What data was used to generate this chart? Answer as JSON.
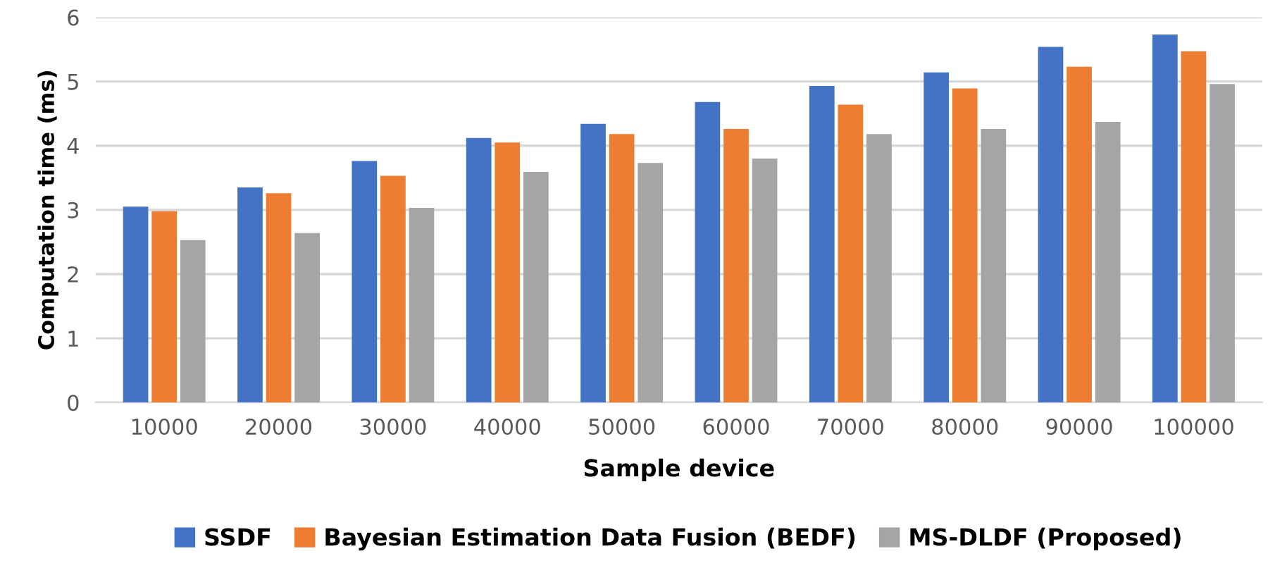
{
  "chart_data": {
    "type": "bar",
    "xlabel": "Sample device",
    "ylabel": "Computation time (ms)",
    "categories": [
      "10000",
      "20000",
      "30000",
      "40000",
      "50000",
      "60000",
      "70000",
      "80000",
      "90000",
      "100000"
    ],
    "series": [
      {
        "name": "SSDF",
        "color": "#4472c4",
        "values": [
          3.05,
          3.35,
          3.76,
          4.12,
          4.34,
          4.68,
          4.93,
          5.14,
          5.54,
          5.73
        ]
      },
      {
        "name": "Bayesian Estimation Data Fusion (BEDF)",
        "color": "#ed7d31",
        "values": [
          2.98,
          3.26,
          3.53,
          4.05,
          4.18,
          4.26,
          4.64,
          4.89,
          5.23,
          5.47
        ]
      },
      {
        "name": "MS-DLDF (Proposed)",
        "color": "#a5a5a5",
        "values": [
          2.53,
          2.64,
          3.03,
          3.59,
          3.73,
          3.8,
          4.18,
          4.26,
          4.37,
          4.96
        ]
      }
    ],
    "ylim": [
      0,
      6
    ],
    "yticks": [
      0,
      1,
      2,
      3,
      4,
      5,
      6
    ],
    "grid": "y",
    "legend": "bottom"
  }
}
